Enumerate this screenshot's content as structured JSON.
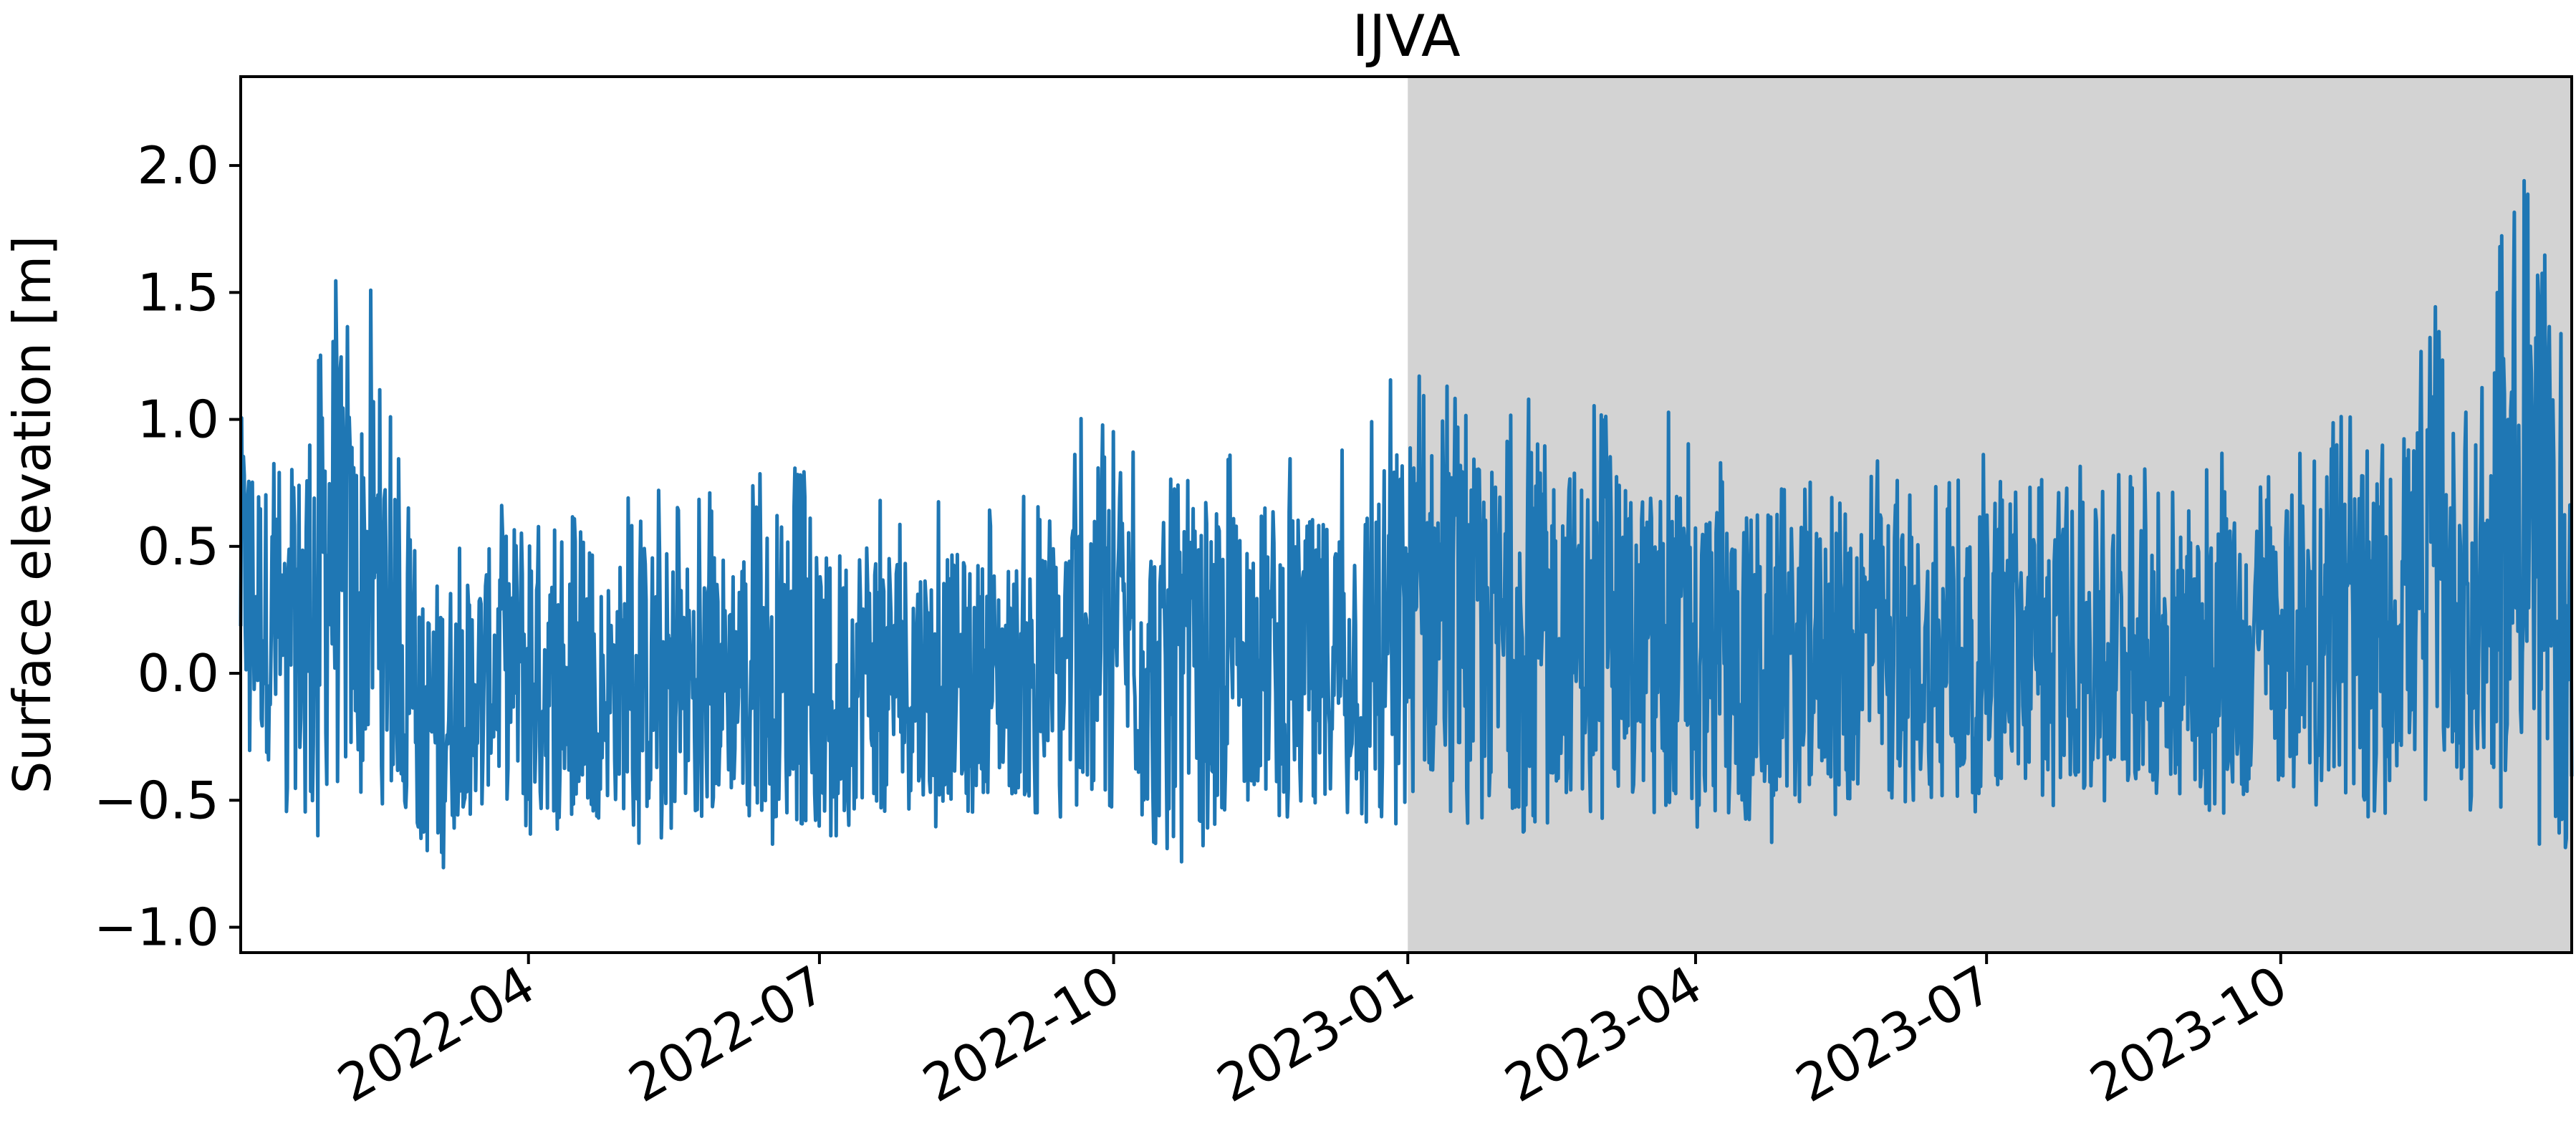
{
  "chart_data": {
    "type": "line",
    "title": "IJVA",
    "xlabel": "",
    "ylabel": "Surface elevation [m]",
    "x_range": [
      "2022-01-01",
      "2023-12-31"
    ],
    "ylim": [
      -1.1,
      2.35
    ],
    "y_ticks": [
      -1.0,
      -0.5,
      0.0,
      0.5,
      1.0,
      1.5,
      2.0
    ],
    "y_tick_labels": [
      "−1.0",
      "−0.5",
      "0.0",
      "0.5",
      "1.0",
      "1.5",
      "2.0"
    ],
    "x_ticks": [
      "2022-04-01",
      "2022-07-01",
      "2022-10-01",
      "2023-01-01",
      "2023-04-01",
      "2023-07-01",
      "2023-10-01"
    ],
    "x_tick_labels": [
      "2022-04",
      "2022-07",
      "2022-10",
      "2023-01",
      "2023-04",
      "2023-07",
      "2023-10"
    ],
    "shaded_region": {
      "start": "2023-01-01",
      "end": "2023-12-31",
      "color": "#d3d3d3"
    },
    "grid": false,
    "series": [
      {
        "color": "#1f77b4",
        "x": [
          "2022-01-01",
          "2022-01-15",
          "2022-01-29",
          "2022-02-05",
          "2022-02-12",
          "2022-02-19",
          "2022-02-26",
          "2022-03-05",
          "2022-03-12",
          "2022-03-19",
          "2022-04-02",
          "2022-04-09",
          "2022-04-23",
          "2022-05-07",
          "2022-05-21",
          "2022-06-04",
          "2022-06-18",
          "2022-07-02",
          "2022-07-16",
          "2022-07-30",
          "2022-08-13",
          "2022-08-27",
          "2022-09-10",
          "2022-09-24",
          "2022-10-08",
          "2022-10-22",
          "2022-11-05",
          "2022-11-19",
          "2022-12-03",
          "2022-12-17",
          "2022-12-31",
          "2023-01-14",
          "2023-01-28",
          "2023-02-11",
          "2023-02-25",
          "2023-03-11",
          "2023-03-25",
          "2023-04-08",
          "2023-04-22",
          "2023-05-06",
          "2023-05-20",
          "2023-06-03",
          "2023-06-17",
          "2023-07-01",
          "2023-07-15",
          "2023-07-29",
          "2023-08-12",
          "2023-08-26",
          "2023-09-09",
          "2023-09-23",
          "2023-10-07",
          "2023-10-21",
          "2023-11-04",
          "2023-11-18",
          "2023-12-02",
          "2023-12-16",
          "2023-12-31"
        ],
        "envelope_high": [
          1.3,
          0.8,
          1.97,
          1.35,
          1.55,
          0.9,
          0.5,
          0.7,
          0.55,
          0.7,
          1.0,
          0.65,
          0.6,
          0.8,
          0.7,
          0.75,
          0.95,
          0.7,
          0.85,
          0.75,
          0.7,
          0.65,
          0.75,
          1.12,
          0.95,
          0.85,
          0.9,
          0.95,
          0.85,
          0.95,
          1.29,
          1.2,
          1.15,
          1.25,
          1.1,
          1.0,
          1.05,
          0.9,
          0.95,
          0.8,
          1.0,
          0.85,
          0.75,
          0.9,
          0.8,
          0.95,
          0.85,
          0.8,
          0.9,
          0.85,
          1.0,
          1.05,
          1.1,
          1.45,
          1.2,
          2.24,
          1.1
        ],
        "envelope_low": [
          -0.3,
          -0.55,
          -0.7,
          -0.6,
          -0.5,
          -0.55,
          -0.8,
          -0.91,
          -0.6,
          -0.55,
          -0.7,
          -0.65,
          -0.6,
          -0.7,
          -0.65,
          -0.6,
          -0.7,
          -0.75,
          -0.6,
          -0.65,
          -0.6,
          -0.55,
          -0.65,
          -0.5,
          -0.6,
          -0.82,
          -0.55,
          -0.6,
          -0.55,
          -0.6,
          -0.65,
          -0.55,
          -0.7,
          -0.65,
          -0.6,
          -0.55,
          -0.65,
          -0.6,
          -0.7,
          -0.55,
          -0.6,
          -0.5,
          -0.55,
          -0.6,
          -0.5,
          -0.55,
          -0.6,
          -0.5,
          -0.6,
          -0.55,
          -0.5,
          -0.6,
          -0.55,
          -0.5,
          -0.6,
          -0.55,
          -0.94
        ]
      }
    ]
  }
}
